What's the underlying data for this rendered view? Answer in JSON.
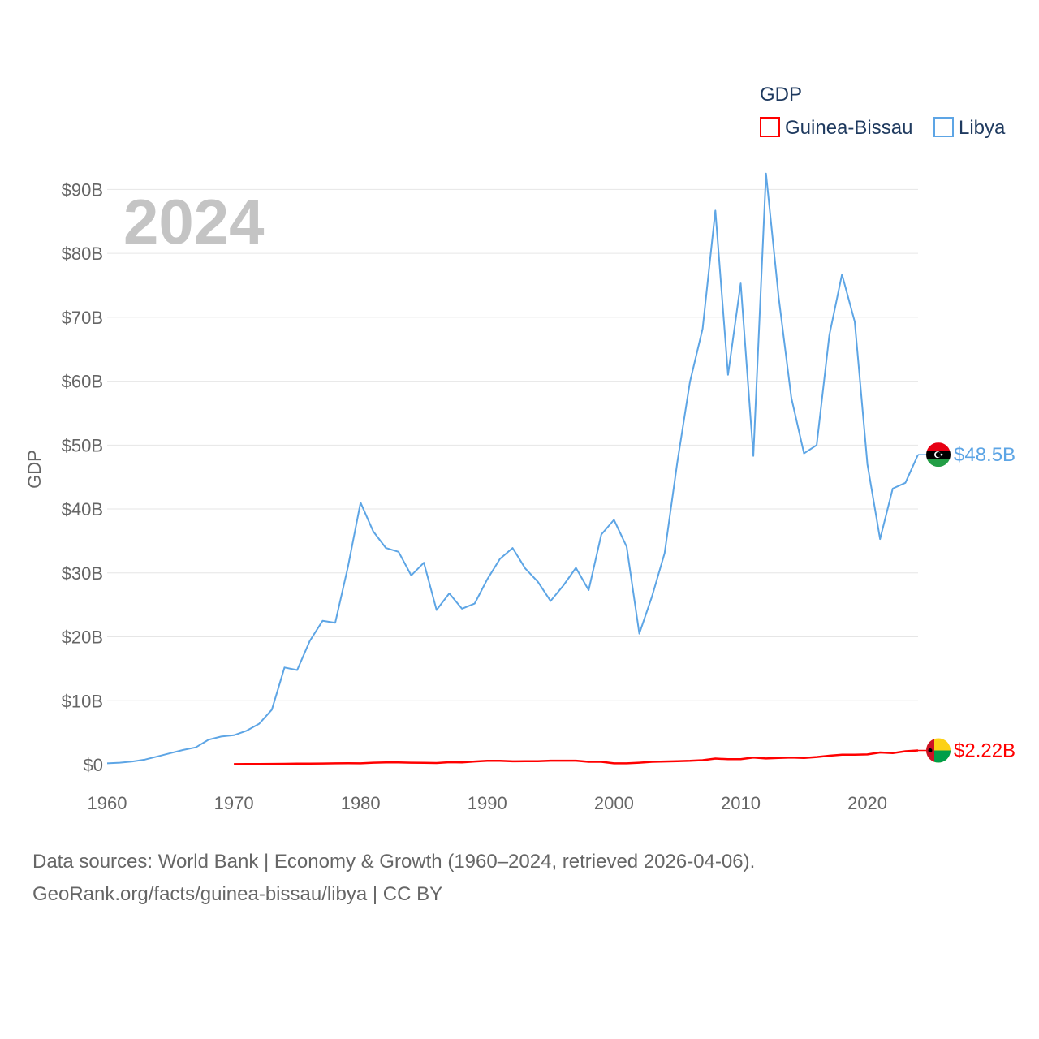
{
  "chart_data": {
    "type": "line",
    "title": "",
    "year_label": "2024",
    "xlabel": "",
    "ylabel": "GDP",
    "xlim": [
      1960,
      2024
    ],
    "ylim": [
      0,
      95
    ],
    "x_ticks": [
      1960,
      1970,
      1980,
      1990,
      2000,
      2010,
      2020
    ],
    "x_tick_labels": [
      "1960",
      "1970",
      "1980",
      "1990",
      "2000",
      "2010",
      "2020"
    ],
    "y_ticks": [
      0,
      10,
      20,
      30,
      40,
      50,
      60,
      70,
      80,
      90
    ],
    "y_tick_labels": [
      "$0",
      "$10B",
      "$20B",
      "$30B",
      "$40B",
      "$50B",
      "$60B",
      "$70B",
      "$80B",
      "$90B"
    ],
    "grid": true,
    "legend": {
      "title": "GDP",
      "position": "top-right"
    },
    "series": [
      {
        "name": "Guinea-Bissau",
        "color": "#ff0000",
        "end_label": "$2.22B",
        "flag_icon": "guinea-bissau-flag-icon",
        "x": [
          1970,
          1971,
          1972,
          1973,
          1974,
          1975,
          1976,
          1977,
          1978,
          1979,
          1980,
          1981,
          1982,
          1983,
          1984,
          1985,
          1986,
          1987,
          1988,
          1989,
          1990,
          1991,
          1992,
          1993,
          1994,
          1995,
          1996,
          1997,
          1998,
          1999,
          2000,
          2001,
          2002,
          2003,
          2004,
          2005,
          2006,
          2007,
          2008,
          2009,
          2010,
          2011,
          2012,
          2013,
          2014,
          2015,
          2016,
          2017,
          2018,
          2019,
          2020,
          2021,
          2022,
          2023,
          2024
        ],
        "values": [
          0.08,
          0.09,
          0.1,
          0.11,
          0.13,
          0.15,
          0.16,
          0.18,
          0.2,
          0.21,
          0.2,
          0.3,
          0.35,
          0.35,
          0.3,
          0.28,
          0.25,
          0.38,
          0.35,
          0.5,
          0.6,
          0.6,
          0.52,
          0.55,
          0.55,
          0.62,
          0.62,
          0.62,
          0.45,
          0.45,
          0.2,
          0.2,
          0.3,
          0.45,
          0.5,
          0.55,
          0.6,
          0.7,
          0.95,
          0.85,
          0.85,
          1.1,
          0.97,
          1.05,
          1.1,
          1.05,
          1.2,
          1.4,
          1.55,
          1.55,
          1.6,
          1.9,
          1.8,
          2.1,
          2.22
        ]
      },
      {
        "name": "Libya",
        "color": "#5da5e5",
        "end_label": "$48.5B",
        "flag_icon": "libya-flag-icon",
        "x": [
          1960,
          1961,
          1962,
          1963,
          1964,
          1965,
          1966,
          1967,
          1968,
          1969,
          1970,
          1971,
          1972,
          1973,
          1974,
          1975,
          1976,
          1977,
          1978,
          1979,
          1980,
          1981,
          1982,
          1983,
          1984,
          1985,
          1986,
          1987,
          1988,
          1989,
          1990,
          1991,
          1992,
          1993,
          1994,
          1995,
          1996,
          1997,
          1998,
          1999,
          2000,
          2001,
          2002,
          2003,
          2004,
          2005,
          2006,
          2007,
          2008,
          2009,
          2010,
          2011,
          2012,
          2013,
          2014,
          2015,
          2016,
          2017,
          2018,
          2019,
          2020,
          2021,
          2022,
          2023,
          2024
        ],
        "values": [
          0.2,
          0.3,
          0.5,
          0.8,
          1.3,
          1.8,
          2.3,
          2.7,
          3.9,
          4.4,
          4.6,
          5.3,
          6.4,
          8.6,
          15.2,
          14.8,
          19.4,
          22.5,
          22.2,
          30.9,
          41.0,
          36.5,
          33.9,
          33.3,
          29.6,
          31.6,
          24.2,
          26.8,
          24.4,
          25.2,
          29.0,
          32.2,
          33.9,
          30.7,
          28.6,
          25.6,
          28.0,
          30.8,
          27.3,
          36.0,
          38.3,
          34.1,
          20.5,
          26.3,
          33.1,
          47.3,
          59.9,
          68.2,
          86.7,
          61.0,
          75.3,
          48.3,
          92.5,
          73.1,
          57.4,
          48.7,
          50.0,
          67.2,
          76.7,
          69.3,
          47.0,
          35.3,
          43.2,
          44.1,
          48.5
        ]
      }
    ]
  },
  "footer": {
    "line1": "Data sources: World Bank | Economy & Growth (1960–2024, retrieved 2026-04-06).",
    "line2": "GeoRank.org/facts/guinea-bissau/libya | CC BY"
  }
}
